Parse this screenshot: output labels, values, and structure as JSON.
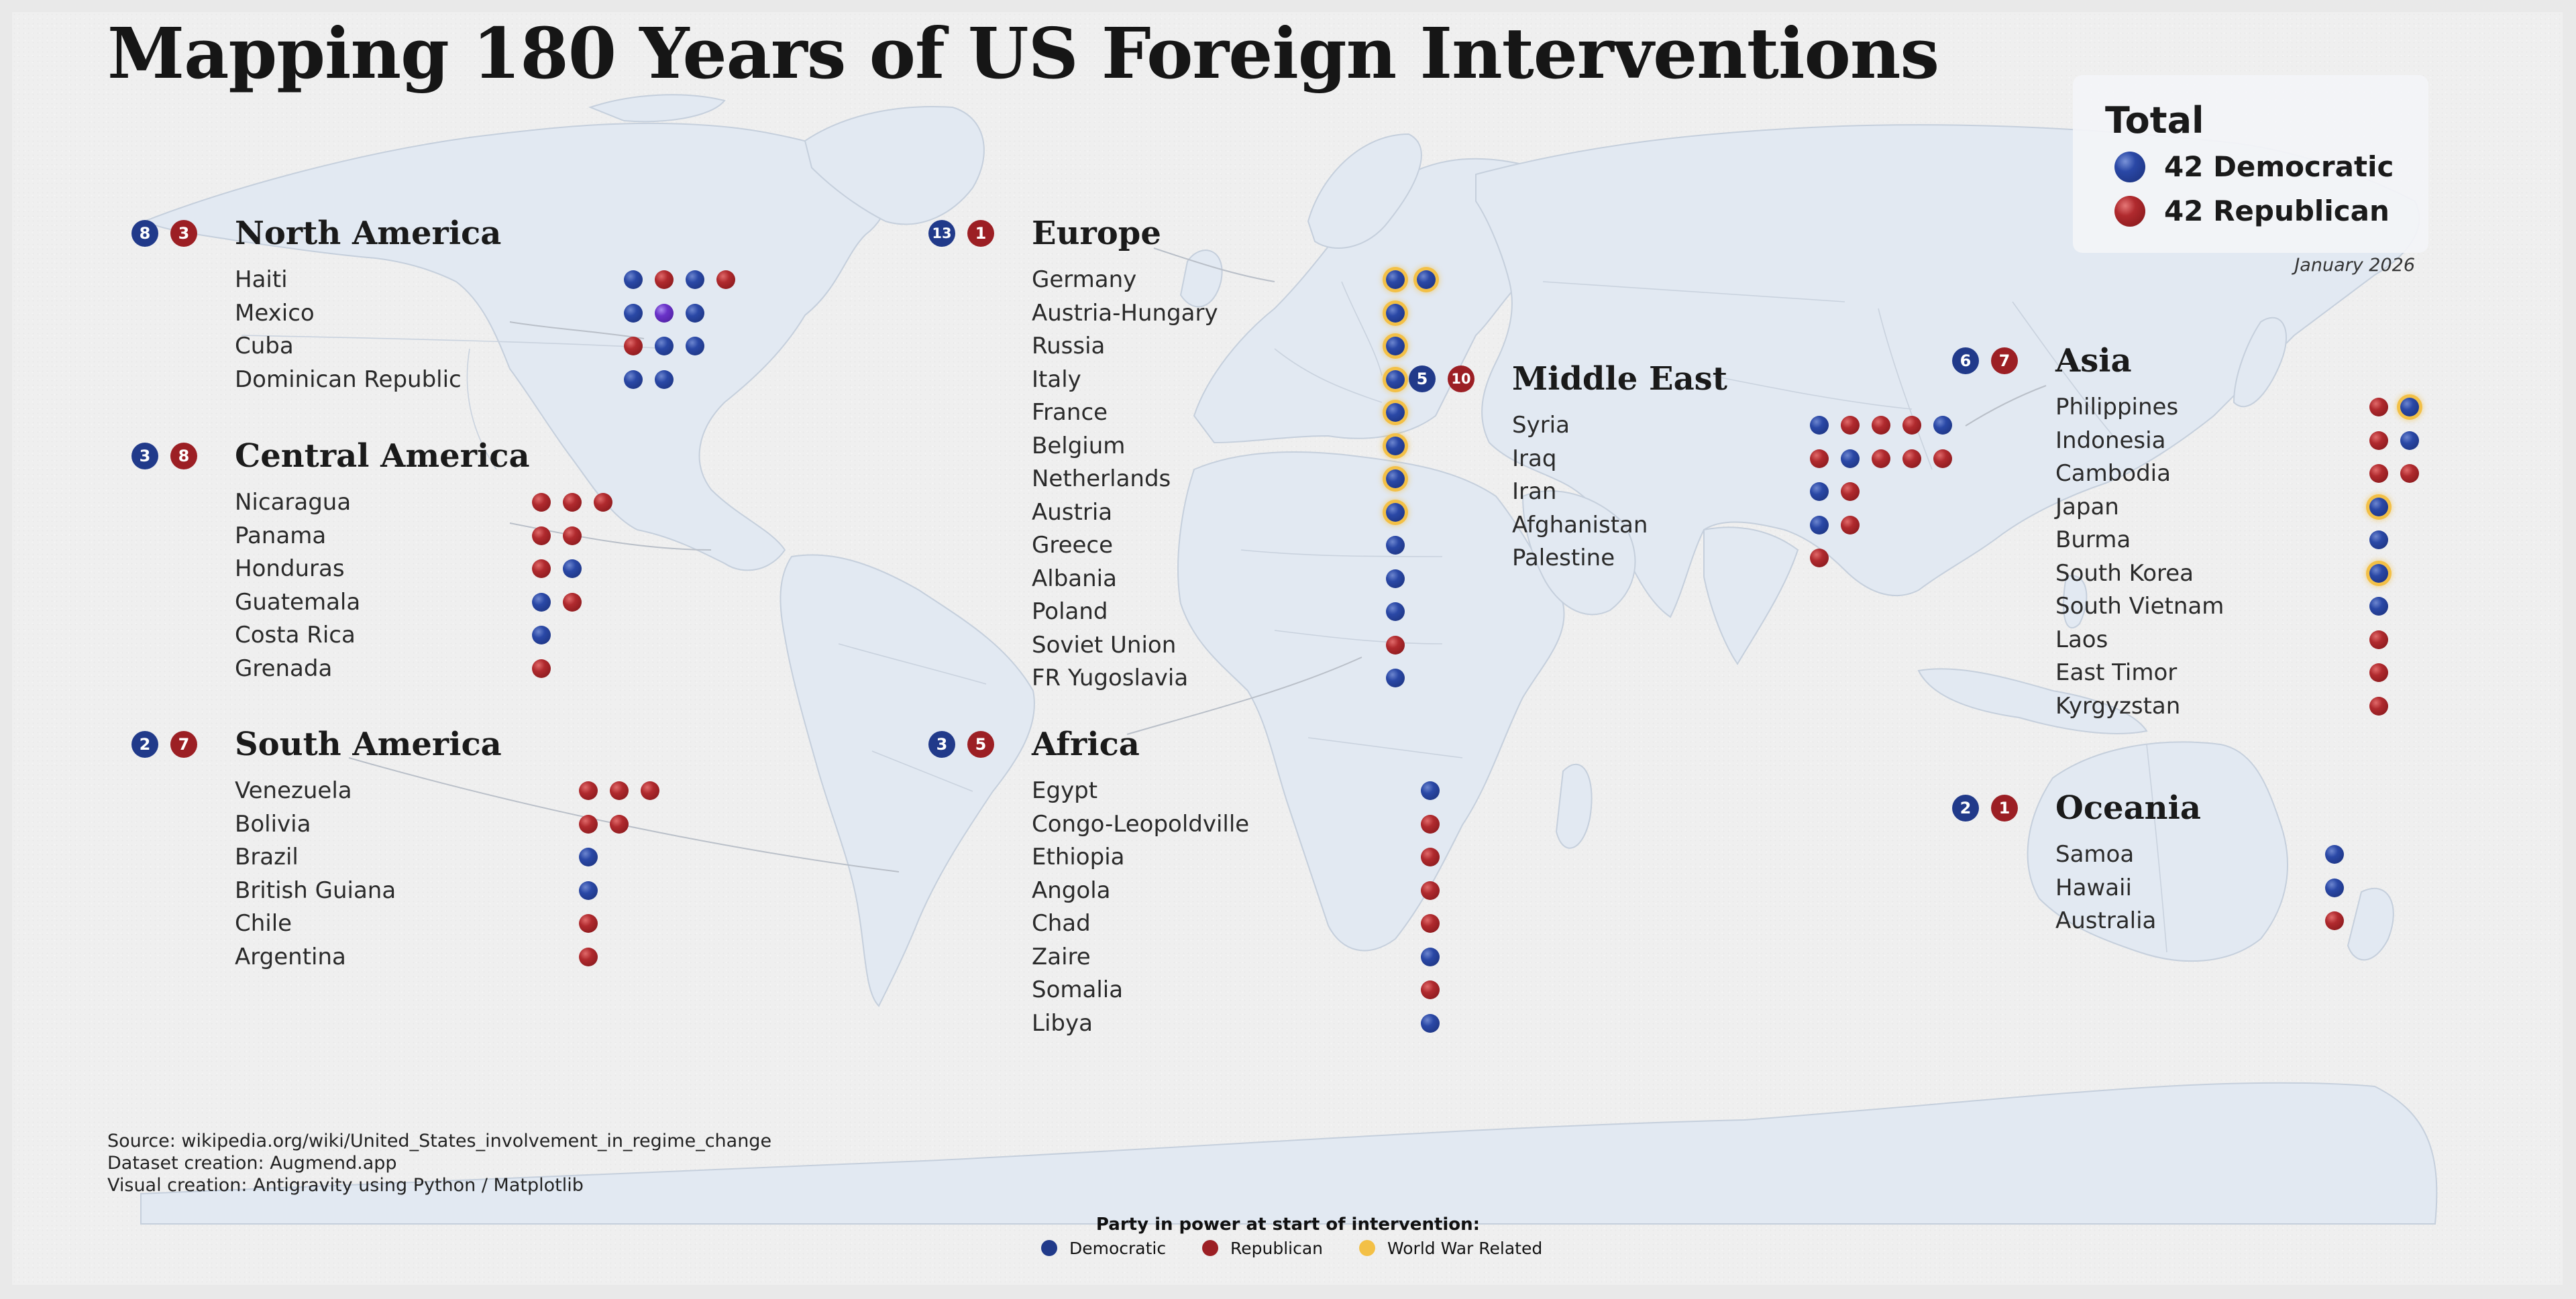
{
  "title": "Mapping 180 Years of US Foreign Interventions",
  "colors": {
    "democratic": "#213a8a",
    "republican": "#9c1f24",
    "mixed": "#6a32c8",
    "world_war": "#f3c046",
    "land": "#e2e9f2"
  },
  "total": {
    "title": "Total",
    "democratic_label": "42 Democratic",
    "republican_label": "42 Republican"
  },
  "date": "January 2026",
  "regions": [
    {
      "name": "North America",
      "dem": "8",
      "rep": "3",
      "countries": [
        {
          "name": "Haiti",
          "marks": [
            "D",
            "R",
            "D",
            "R"
          ]
        },
        {
          "name": "Mexico",
          "marks": [
            "D",
            "P",
            "D"
          ]
        },
        {
          "name": "Cuba",
          "marks": [
            "R",
            "D",
            "D"
          ]
        },
        {
          "name": "Dominican Republic",
          "marks": [
            "D",
            "D"
          ]
        }
      ]
    },
    {
      "name": "Central America",
      "dem": "3",
      "rep": "8",
      "countries": [
        {
          "name": "Nicaragua",
          "marks": [
            "R",
            "R",
            "R"
          ]
        },
        {
          "name": "Panama",
          "marks": [
            "R",
            "R"
          ]
        },
        {
          "name": "Honduras",
          "marks": [
            "R",
            "D"
          ]
        },
        {
          "name": "Guatemala",
          "marks": [
            "D",
            "R"
          ]
        },
        {
          "name": "Costa Rica",
          "marks": [
            "D"
          ]
        },
        {
          "name": "Grenada",
          "marks": [
            "R"
          ]
        }
      ]
    },
    {
      "name": "South America",
      "dem": "2",
      "rep": "7",
      "countries": [
        {
          "name": "Venezuela",
          "marks": [
            "R",
            "R",
            "R"
          ]
        },
        {
          "name": "Bolivia",
          "marks": [
            "R",
            "R"
          ]
        },
        {
          "name": "Brazil",
          "marks": [
            "D"
          ]
        },
        {
          "name": "British Guiana",
          "marks": [
            "D"
          ]
        },
        {
          "name": "Chile",
          "marks": [
            "R"
          ]
        },
        {
          "name": "Argentina",
          "marks": [
            "R"
          ]
        }
      ]
    },
    {
      "name": "Europe",
      "dem": "13",
      "rep": "1",
      "countries": [
        {
          "name": "Germany",
          "marks": [
            "DW",
            "DW"
          ]
        },
        {
          "name": "Austria-Hungary",
          "marks": [
            "DW"
          ]
        },
        {
          "name": "Russia",
          "marks": [
            "DW"
          ]
        },
        {
          "name": "Italy",
          "marks": [
            "DW"
          ]
        },
        {
          "name": "France",
          "marks": [
            "DW"
          ]
        },
        {
          "name": "Belgium",
          "marks": [
            "DW"
          ]
        },
        {
          "name": "Netherlands",
          "marks": [
            "DW"
          ]
        },
        {
          "name": "Austria",
          "marks": [
            "DW"
          ]
        },
        {
          "name": "Greece",
          "marks": [
            "D"
          ]
        },
        {
          "name": "Albania",
          "marks": [
            "D"
          ]
        },
        {
          "name": "Poland",
          "marks": [
            "D"
          ]
        },
        {
          "name": "Soviet Union",
          "marks": [
            "R"
          ]
        },
        {
          "name": "FR Yugoslavia",
          "marks": [
            "D"
          ]
        }
      ]
    },
    {
      "name": "Africa",
      "dem": "3",
      "rep": "5",
      "countries": [
        {
          "name": "Egypt",
          "marks": [
            "D"
          ]
        },
        {
          "name": "Congo-Leopoldville",
          "marks": [
            "R"
          ]
        },
        {
          "name": "Ethiopia",
          "marks": [
            "R"
          ]
        },
        {
          "name": "Angola",
          "marks": [
            "R"
          ]
        },
        {
          "name": "Chad",
          "marks": [
            "R"
          ]
        },
        {
          "name": "Zaire",
          "marks": [
            "D"
          ]
        },
        {
          "name": "Somalia",
          "marks": [
            "R"
          ]
        },
        {
          "name": "Libya",
          "marks": [
            "D"
          ]
        }
      ]
    },
    {
      "name": "Middle East",
      "dem": "5",
      "rep": "10",
      "countries": [
        {
          "name": "Syria",
          "marks": [
            "D",
            "R",
            "R",
            "R",
            "D"
          ]
        },
        {
          "name": "Iraq",
          "marks": [
            "R",
            "D",
            "R",
            "R",
            "R"
          ]
        },
        {
          "name": "Iran",
          "marks": [
            "D",
            "R"
          ]
        },
        {
          "name": "Afghanistan",
          "marks": [
            "D",
            "R"
          ]
        },
        {
          "name": "Palestine",
          "marks": [
            "R"
          ]
        }
      ]
    },
    {
      "name": "Asia",
      "dem": "6",
      "rep": "7",
      "countries": [
        {
          "name": "Philippines",
          "marks": [
            "R",
            "DW"
          ]
        },
        {
          "name": "Indonesia",
          "marks": [
            "R",
            "D"
          ]
        },
        {
          "name": "Cambodia",
          "marks": [
            "R",
            "R"
          ]
        },
        {
          "name": "Japan",
          "marks": [
            "DW"
          ]
        },
        {
          "name": "Burma",
          "marks": [
            "D"
          ]
        },
        {
          "name": "South Korea",
          "marks": [
            "DW"
          ]
        },
        {
          "name": "South Vietnam",
          "marks": [
            "D"
          ]
        },
        {
          "name": "Laos",
          "marks": [
            "R"
          ]
        },
        {
          "name": "East Timor",
          "marks": [
            "R"
          ]
        },
        {
          "name": "Kyrgyzstan",
          "marks": [
            "R"
          ]
        }
      ]
    },
    {
      "name": "Oceania",
      "dem": "2",
      "rep": "1",
      "countries": [
        {
          "name": "Samoa",
          "marks": [
            "D"
          ]
        },
        {
          "name": "Hawaii",
          "marks": [
            "D"
          ]
        },
        {
          "name": "Australia",
          "marks": [
            "R"
          ]
        }
      ]
    }
  ],
  "credits": [
    "Source: wikipedia.org/wiki/United_States_involvement_in_regime_change",
    "Dataset creation: Augmend.app",
    "Visual creation: Antigravity using Python / Matplotlib"
  ],
  "legend": {
    "title": "Party in power at start of intervention:",
    "items": [
      "Democratic",
      "Republican",
      "World War Related"
    ]
  }
}
